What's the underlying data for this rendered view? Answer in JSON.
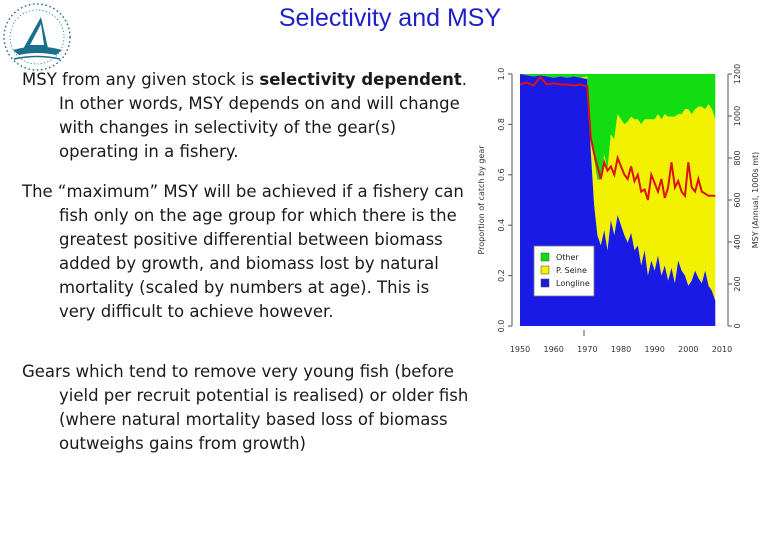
{
  "slide": {
    "title": "Selectivity and MSY",
    "p1_pre": "MSY from any given stock is ",
    "p1_bold": "selectivity dependent",
    "p1_post": ". In other words, MSY depends on and will change with changes in selectivity of the gear(s) operating in a fishery.",
    "p2": "The “maximum” MSY will be achieved if a fishery can fish only on the age group for which there is the greatest positive differential between biomass added by growth, and biomass lost by natural mortality (scaled by numbers at age). This is very difficult to achieve however.",
    "p3": "Gears which tend to remove very young fish (before yield per recruit potential is realised) or older fish (where natural mortality based loss of biomass outweighs gains from growth)"
  },
  "colors": {
    "title": "#1f1fc8",
    "logo": "#1b6f8c",
    "other": "#11dd11",
    "pseine": "#f2f200",
    "longline": "#1a1ae6",
    "msy": "#dd1111"
  },
  "chart_data": {
    "type": "area",
    "x": [
      1950,
      1952,
      1954,
      1956,
      1958,
      1960,
      1962,
      1964,
      1966,
      1968,
      1970,
      1971,
      1972,
      1973,
      1974,
      1975,
      1976,
      1977,
      1978,
      1979,
      1980,
      1981,
      1982,
      1983,
      1984,
      1985,
      1986,
      1987,
      1988,
      1989,
      1990,
      1991,
      1992,
      1993,
      1994,
      1995,
      1996,
      1997,
      1998,
      1999,
      2000,
      2001,
      2002,
      2003,
      2004,
      2005,
      2006,
      2007,
      2008
    ],
    "series": [
      {
        "name": "Longline",
        "values": [
          1.0,
          0.995,
          0.99,
          0.995,
          0.99,
          0.985,
          0.99,
          0.985,
          0.99,
          0.985,
          0.98,
          0.7,
          0.48,
          0.36,
          0.32,
          0.38,
          0.3,
          0.42,
          0.36,
          0.44,
          0.4,
          0.36,
          0.33,
          0.37,
          0.3,
          0.32,
          0.24,
          0.3,
          0.2,
          0.26,
          0.22,
          0.28,
          0.2,
          0.24,
          0.18,
          0.23,
          0.17,
          0.26,
          0.22,
          0.2,
          0.16,
          0.18,
          0.22,
          0.19,
          0.17,
          0.22,
          0.16,
          0.14,
          0.1
        ]
      },
      {
        "name": "P. Seine",
        "values": [
          0,
          0,
          0,
          0,
          0,
          0,
          0,
          0,
          0,
          0,
          0.01,
          0.08,
          0.18,
          0.22,
          0.26,
          0.3,
          0.32,
          0.34,
          0.38,
          0.4,
          0.42,
          0.44,
          0.48,
          0.46,
          0.52,
          0.5,
          0.56,
          0.52,
          0.62,
          0.56,
          0.6,
          0.56,
          0.62,
          0.6,
          0.65,
          0.6,
          0.66,
          0.58,
          0.62,
          0.66,
          0.7,
          0.66,
          0.64,
          0.68,
          0.7,
          0.64,
          0.72,
          0.72,
          0.72
        ]
      },
      {
        "name": "Other",
        "values": [
          0,
          0.005,
          0.01,
          0.005,
          0.01,
          0.015,
          0.01,
          0.015,
          0.01,
          0.015,
          0.01,
          0.22,
          0.34,
          0.42,
          0.42,
          0.32,
          0.38,
          0.24,
          0.26,
          0.16,
          0.18,
          0.2,
          0.19,
          0.17,
          0.18,
          0.18,
          0.2,
          0.18,
          0.18,
          0.18,
          0.18,
          0.16,
          0.18,
          0.16,
          0.17,
          0.17,
          0.17,
          0.16,
          0.16,
          0.14,
          0.14,
          0.16,
          0.14,
          0.13,
          0.13,
          0.14,
          0.12,
          0.14,
          0.18
        ]
      }
    ],
    "msy_line": {
      "x": [
        1950,
        1952,
        1954,
        1956,
        1958,
        1960,
        1962,
        1964,
        1966,
        1968,
        1970,
        1971,
        1972,
        1973,
        1974,
        1975,
        1976,
        1977,
        1978,
        1979,
        1980,
        1981,
        1982,
        1983,
        1984,
        1985,
        1986,
        1987,
        1988,
        1989,
        1990,
        1991,
        1992,
        1993,
        1994,
        1995,
        1996,
        1997,
        1998,
        1999,
        2000,
        2001,
        2002,
        2003,
        2004,
        2005,
        2006,
        2007,
        2008
      ],
      "values": [
        1150,
        1160,
        1145,
        1185,
        1150,
        1155,
        1150,
        1150,
        1145,
        1150,
        1140,
        900,
        820,
        760,
        700,
        780,
        740,
        760,
        720,
        800,
        760,
        720,
        700,
        760,
        690,
        720,
        640,
        650,
        600,
        720,
        680,
        640,
        700,
        610,
        660,
        780,
        660,
        690,
        640,
        620,
        780,
        660,
        640,
        700,
        640,
        630,
        620,
        620,
        620
      ]
    },
    "ylabel": "Proportion of catch by gear",
    "y2label": "MSY (Annual, 1000s mt)",
    "xlim": [
      1950,
      2010
    ],
    "ylim": [
      0,
      1.0
    ],
    "y2lim": [
      0,
      1200
    ],
    "xticks": [
      1950,
      1960,
      1970,
      1980,
      1990,
      2000,
      2010
    ],
    "yticks": [
      "0.0",
      "0.2",
      "0.4",
      "0.6",
      "0.8",
      "1.0"
    ],
    "y2ticks": [
      "0",
      "200",
      "400",
      "600",
      "800",
      "1000",
      "1200"
    ],
    "legend_entries": [
      "Other",
      "P. Seine",
      "Longline"
    ],
    "legend_position": "bottom-left",
    "grid": false
  }
}
